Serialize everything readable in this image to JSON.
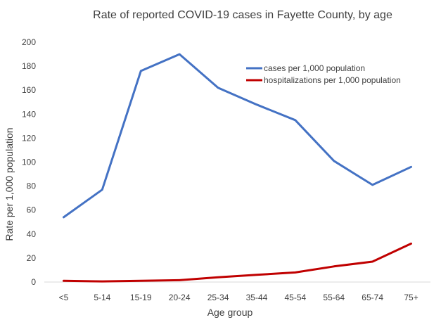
{
  "chart_data": {
    "type": "line",
    "title": "Rate of reported COVID-19 cases in Fayette County, by age",
    "xlabel": "Age group",
    "ylabel": "Rate per 1,000 population",
    "categories": [
      "<5",
      "5-14",
      "15-19",
      "20-24",
      "25-34",
      "35-44",
      "45-54",
      "55-64",
      "65-74",
      "75+"
    ],
    "ylim": [
      0,
      200
    ],
    "yticks": [
      "0",
      "20",
      "40",
      "60",
      "80",
      "100",
      "120",
      "140",
      "160",
      "180",
      "200"
    ],
    "grid": false,
    "legend_position": "top-right",
    "series": [
      {
        "name": "cases per 1,000 population",
        "color": "#4472C4",
        "values": [
          54,
          77,
          176,
          190,
          162,
          148,
          135,
          101,
          81,
          96
        ]
      },
      {
        "name": "hospitalizations per 1,000 population",
        "color": "#C00000",
        "values": [
          1,
          0.5,
          1,
          1.5,
          4,
          6,
          8,
          13,
          17,
          32
        ]
      }
    ]
  }
}
